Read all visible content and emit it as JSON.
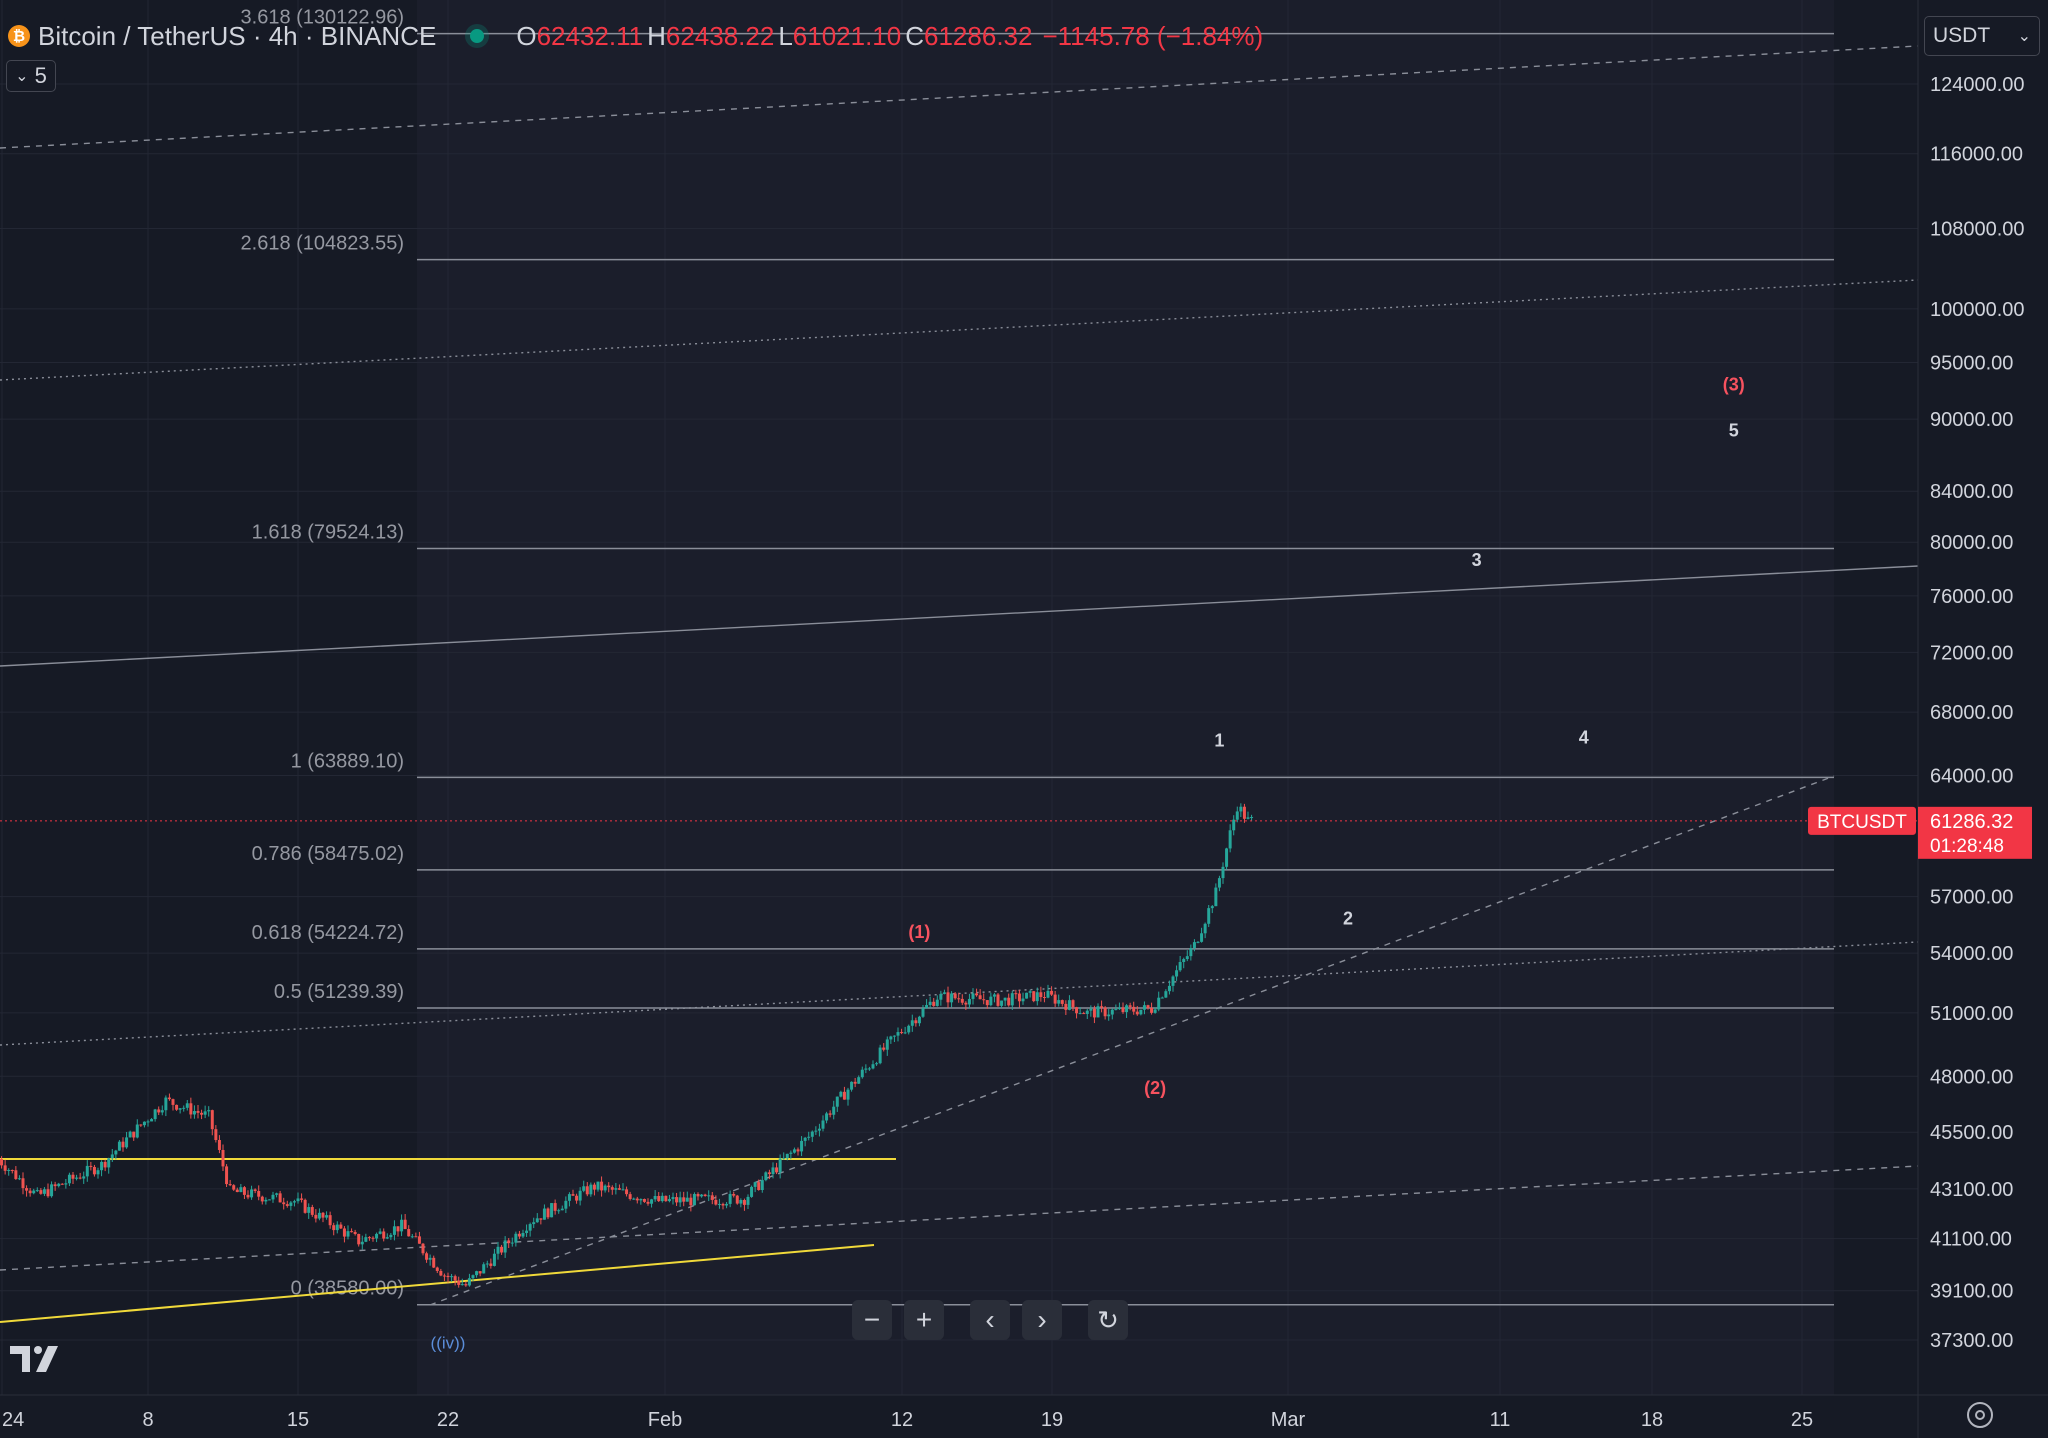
{
  "header": {
    "symbol_title": "Bitcoin / TetherUS · 4h · BINANCE",
    "open_label": "O",
    "open": "62432.11",
    "high_label": "H",
    "high": "62438.22",
    "low_label": "L",
    "low": "61021.10",
    "close_label": "C",
    "close": "61286.32",
    "change": "−1145.78 (−1.84%)",
    "collapse_count": "5"
  },
  "currency": "USDT",
  "price_label": {
    "symbol": "BTCUSDT",
    "price": "61286.32",
    "countdown": "01:28:48"
  },
  "colors": {
    "background": "#161a25",
    "up": "#26a69a",
    "down": "#ef5350",
    "price_line": "#f23645",
    "wave_label": "#f7525f",
    "yellow": "#f0d93a"
  },
  "chart_data": {
    "type": "candlestick",
    "y_scale": "log",
    "y_ticks": [
      124000,
      116000,
      108000,
      100000,
      95000,
      90000,
      84000,
      80000,
      76000,
      72000,
      68000,
      64000,
      57000,
      54000,
      51000,
      48000,
      45500,
      43100,
      41100,
      39100,
      37300
    ],
    "x_ticks": [
      "24",
      "8",
      "15",
      "22",
      "Feb",
      "12",
      "19",
      "Mar",
      "11",
      "18",
      "25"
    ],
    "grid": true,
    "fib_levels": [
      {
        "label": "3.618 (130122.96)",
        "value": 130122.96
      },
      {
        "label": "2.618 (104823.55)",
        "value": 104823.55
      },
      {
        "label": "1.618 (79524.13)",
        "value": 79524.13
      },
      {
        "label": "1 (63889.10)",
        "value": 63889.1
      },
      {
        "label": "0.786 (58475.02)",
        "value": 58475.02
      },
      {
        "label": "0.618 (54224.72)",
        "value": 54224.72
      },
      {
        "label": "0.5 (51239.39)",
        "value": 51239.39
      },
      {
        "label": "0 (38580.00)",
        "value": 38580.0
      }
    ],
    "wave_labels": [
      {
        "text": "((iv))",
        "date": "2024-01-22",
        "price": 37000,
        "color": "blue"
      },
      {
        "text": "(1)",
        "date": "2024-02-13",
        "price": 54800,
        "color": "red"
      },
      {
        "text": "(2)",
        "date": "2024-02-24",
        "price": 47200,
        "color": "red"
      },
      {
        "text": "1",
        "date": "2024-02-27",
        "price": 65800,
        "color": "white"
      },
      {
        "text": "2",
        "date": "2024-03-04",
        "price": 55500,
        "color": "white"
      },
      {
        "text": "3",
        "date": "2024-03-10",
        "price": 78200,
        "color": "white"
      },
      {
        "text": "4",
        "date": "2024-03-15",
        "price": 66000,
        "color": "white"
      },
      {
        "text": "5",
        "date": "2024-03-22",
        "price": 88500,
        "color": "white"
      },
      {
        "text": "(3)",
        "date": "2024-03-22",
        "price": 92500,
        "color": "red"
      }
    ],
    "candle_path": [
      [
        "2024-01-01",
        44500
      ],
      [
        "2024-01-03",
        42800
      ],
      [
        "2024-01-06",
        44100
      ],
      [
        "2024-01-09",
        46900
      ],
      [
        "2024-01-11",
        46200
      ],
      [
        "2024-01-12",
        43000
      ],
      [
        "2024-01-15",
        42600
      ],
      [
        "2024-01-18",
        41000
      ],
      [
        "2024-01-20",
        41600
      ],
      [
        "2024-01-22",
        39700
      ],
      [
        "2024-01-23",
        39300
      ],
      [
        "2024-01-26",
        41800
      ],
      [
        "2024-01-29",
        43200
      ],
      [
        "2024-02-01",
        42600
      ],
      [
        "2024-02-05",
        42700
      ],
      [
        "2024-02-08",
        45300
      ],
      [
        "2024-02-10",
        47600
      ],
      [
        "2024-02-12",
        49800
      ],
      [
        "2024-02-14",
        51800
      ],
      [
        "2024-02-17",
        51600
      ],
      [
        "2024-02-19",
        51900
      ],
      [
        "2024-02-21",
        51000
      ],
      [
        "2024-02-24",
        51200
      ],
      [
        "2024-02-26",
        54400
      ],
      [
        "2024-02-27",
        57200
      ],
      [
        "2024-02-28",
        62200
      ],
      [
        "2024-02-28T12",
        61286
      ]
    ]
  }
}
